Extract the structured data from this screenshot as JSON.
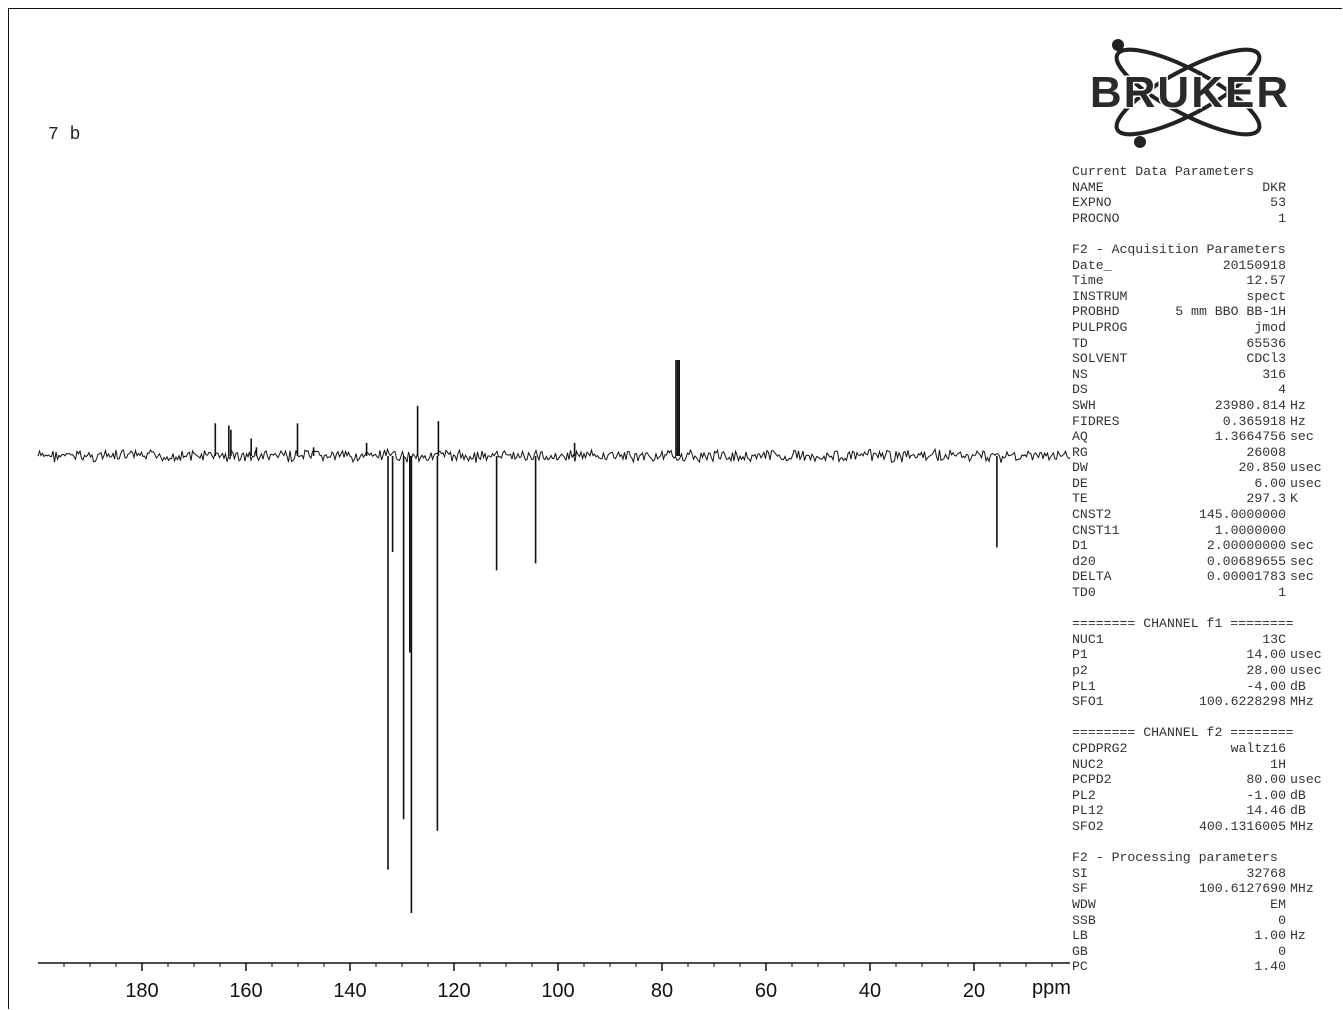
{
  "sample_label": "7 b",
  "logo_text": "BRUKER",
  "colors": {
    "ink": "#111111",
    "param_text": "#333333",
    "background": "#ffffff"
  },
  "chart_data": {
    "type": "line",
    "subtype": "13C JMOD NMR spectrum",
    "xlabel": "ppm",
    "x_reversed": true,
    "xlim": [
      200,
      0
    ],
    "x_ticks_major": [
      180,
      160,
      140,
      120,
      100,
      80,
      60,
      40,
      20
    ],
    "x_tick_labels": [
      "180",
      "160",
      "140",
      "120",
      "100",
      "80",
      "60",
      "40",
      "20"
    ],
    "y_units": "relative intensity (positive up, negative down)",
    "ylim": [
      -1.0,
      0.2
    ],
    "baseline": 0,
    "peaks": [
      {
        "ppm": 165.9,
        "intensity": 0.075
      },
      {
        "ppm": 163.3,
        "intensity": 0.07
      },
      {
        "ppm": 162.9,
        "intensity": 0.06
      },
      {
        "ppm": 159.0,
        "intensity": 0.04
      },
      {
        "ppm": 158.0,
        "intensity": 0.02
      },
      {
        "ppm": 150.1,
        "intensity": 0.075
      },
      {
        "ppm": 147.0,
        "intensity": 0.02
      },
      {
        "ppm": 136.8,
        "intensity": 0.03
      },
      {
        "ppm": 132.7,
        "intensity": -0.905
      },
      {
        "ppm": 131.8,
        "intensity": -0.21
      },
      {
        "ppm": 129.7,
        "intensity": -0.795
      },
      {
        "ppm": 128.5,
        "intensity": -0.43
      },
      {
        "ppm": 128.2,
        "intensity": -1.0
      },
      {
        "ppm": 127.0,
        "intensity": 0.115
      },
      {
        "ppm": 123.2,
        "intensity": -0.82
      },
      {
        "ppm": 123.0,
        "intensity": 0.08
      },
      {
        "ppm": 111.8,
        "intensity": -0.25
      },
      {
        "ppm": 104.3,
        "intensity": -0.235
      },
      {
        "ppm": 96.8,
        "intensity": 0.03
      },
      {
        "ppm": 77.3,
        "intensity": 0.22
      },
      {
        "ppm": 77.0,
        "intensity": 0.22
      },
      {
        "ppm": 76.7,
        "intensity": 0.22
      },
      {
        "ppm": 15.6,
        "intensity": -0.2
      }
    ]
  },
  "parameters": [
    {
      "type": "header",
      "text": "Current Data Parameters"
    },
    {
      "type": "row",
      "key": "NAME",
      "value": "DKR",
      "unit": ""
    },
    {
      "type": "row",
      "key": "EXPNO",
      "value": "53",
      "unit": ""
    },
    {
      "type": "row",
      "key": "PROCNO",
      "value": "1",
      "unit": ""
    },
    {
      "type": "gap"
    },
    {
      "type": "header",
      "text": "F2 - Acquisition Parameters"
    },
    {
      "type": "row",
      "key": "Date_",
      "value": "20150918",
      "unit": ""
    },
    {
      "type": "row",
      "key": "Time",
      "value": "12.57",
      "unit": ""
    },
    {
      "type": "row",
      "key": "INSTRUM",
      "value": "spect",
      "unit": ""
    },
    {
      "type": "row",
      "key": "PROBHD",
      "value": "5 mm BBO BB-1H",
      "unit": ""
    },
    {
      "type": "row",
      "key": "PULPROG",
      "value": "jmod",
      "unit": ""
    },
    {
      "type": "row",
      "key": "TD",
      "value": "65536",
      "unit": ""
    },
    {
      "type": "row",
      "key": "SOLVENT",
      "value": "CDCl3",
      "unit": ""
    },
    {
      "type": "row",
      "key": "NS",
      "value": "316",
      "unit": ""
    },
    {
      "type": "row",
      "key": "DS",
      "value": "4",
      "unit": ""
    },
    {
      "type": "row",
      "key": "SWH",
      "value": "23980.814",
      "unit": "Hz"
    },
    {
      "type": "row",
      "key": "FIDRES",
      "value": "0.365918",
      "unit": "Hz"
    },
    {
      "type": "row",
      "key": "AQ",
      "value": "1.3664756",
      "unit": "sec"
    },
    {
      "type": "row",
      "key": "RG",
      "value": "26008",
      "unit": ""
    },
    {
      "type": "row",
      "key": "DW",
      "value": "20.850",
      "unit": "usec"
    },
    {
      "type": "row",
      "key": "DE",
      "value": "6.00",
      "unit": "usec"
    },
    {
      "type": "row",
      "key": "TE",
      "value": "297.3",
      "unit": "K"
    },
    {
      "type": "row",
      "key": "CNST2",
      "value": "145.0000000",
      "unit": ""
    },
    {
      "type": "row",
      "key": "CNST11",
      "value": "1.0000000",
      "unit": ""
    },
    {
      "type": "row",
      "key": "D1",
      "value": "2.00000000",
      "unit": "sec"
    },
    {
      "type": "row",
      "key": "d20",
      "value": "0.00689655",
      "unit": "sec"
    },
    {
      "type": "row",
      "key": "DELTA",
      "value": "0.00001783",
      "unit": "sec"
    },
    {
      "type": "row",
      "key": "TD0",
      "value": "1",
      "unit": ""
    },
    {
      "type": "gap"
    },
    {
      "type": "header",
      "text": "======== CHANNEL f1 ========"
    },
    {
      "type": "row",
      "key": "NUC1",
      "value": "13C",
      "unit": ""
    },
    {
      "type": "row",
      "key": "P1",
      "value": "14.00",
      "unit": "usec"
    },
    {
      "type": "row",
      "key": "p2",
      "value": "28.00",
      "unit": "usec"
    },
    {
      "type": "row",
      "key": "PL1",
      "value": "-4.00",
      "unit": "dB"
    },
    {
      "type": "row",
      "key": "SFO1",
      "value": "100.6228298",
      "unit": "MHz"
    },
    {
      "type": "gap"
    },
    {
      "type": "header",
      "text": "======== CHANNEL f2 ========"
    },
    {
      "type": "row",
      "key": "CPDPRG2",
      "value": "waltz16",
      "unit": ""
    },
    {
      "type": "row",
      "key": "NUC2",
      "value": "1H",
      "unit": ""
    },
    {
      "type": "row",
      "key": "PCPD2",
      "value": "80.00",
      "unit": "usec"
    },
    {
      "type": "row",
      "key": "PL2",
      "value": "-1.00",
      "unit": "dB"
    },
    {
      "type": "row",
      "key": "PL12",
      "value": "14.46",
      "unit": "dB"
    },
    {
      "type": "row",
      "key": "SFO2",
      "value": "400.1316005",
      "unit": "MHz"
    },
    {
      "type": "gap"
    },
    {
      "type": "header",
      "text": "F2 - Processing parameters"
    },
    {
      "type": "row",
      "key": "SI",
      "value": "32768",
      "unit": ""
    },
    {
      "type": "row",
      "key": "SF",
      "value": "100.6127690",
      "unit": "MHz"
    },
    {
      "type": "row",
      "key": "WDW",
      "value": "EM",
      "unit": ""
    },
    {
      "type": "row",
      "key": "SSB",
      "value": "0",
      "unit": ""
    },
    {
      "type": "row",
      "key": "LB",
      "value": "1.00",
      "unit": "Hz"
    },
    {
      "type": "row",
      "key": "GB",
      "value": "0",
      "unit": ""
    },
    {
      "type": "row",
      "key": "PC",
      "value": "1.40",
      "unit": ""
    }
  ]
}
